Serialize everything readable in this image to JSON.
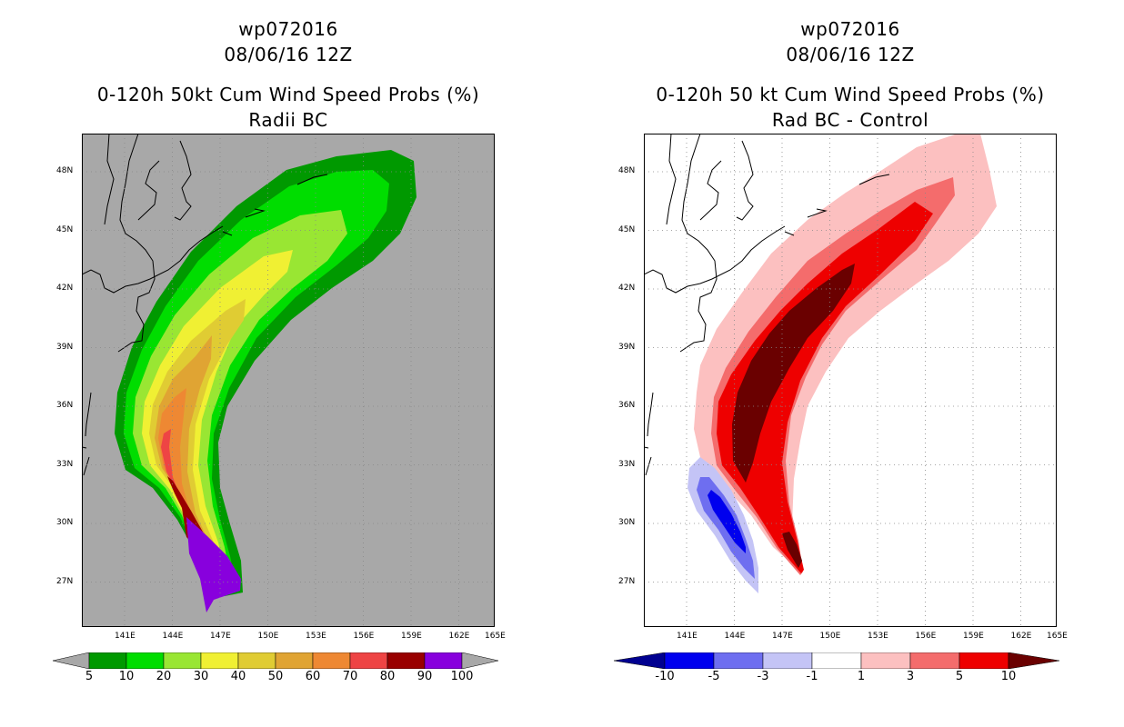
{
  "left": {
    "title_line1": "wp072016",
    "title_line2": "08/06/16 12Z",
    "title_line3": "0-120h 50kt Cum Wind Speed Probs (%)",
    "title_line4": "Radii BC",
    "background": "#a8a8a8",
    "colorbar": {
      "colors": [
        "#009900",
        "#00dd00",
        "#99e633",
        "#f0f033",
        "#e0cc33",
        "#e0a433",
        "#ee8833",
        "#ee4444",
        "#990000",
        "#8800dd"
      ],
      "under_color": "#a8a8a8",
      "over_color": "#a8a8a8",
      "labels": [
        "5",
        "10",
        "20",
        "30",
        "40",
        "50",
        "60",
        "70",
        "80",
        "90",
        "100"
      ]
    }
  },
  "right": {
    "title_line1": "wp072016",
    "title_line2": "08/06/16 12Z",
    "title_line3": "0-120h 50 kt Cum Wind Speed Probs (%)",
    "title_line4": "Rad BC - Control",
    "background": "#ffffff",
    "colorbar": {
      "colors": [
        "#0000ee",
        "#6e6ef0",
        "#c4c4f6",
        "#ffffff",
        "#fcc0c0",
        "#f46c6c",
        "#ee0000"
      ],
      "under_color": "#000090",
      "over_color": "#6a0000",
      "labels": [
        "-10",
        "-5",
        "-3",
        "-1",
        "1",
        "3",
        "5",
        "10"
      ]
    }
  },
  "axes": {
    "lon_ticks": [
      "141E",
      "144E",
      "147E",
      "150E",
      "153E",
      "156E",
      "159E",
      "162E",
      "165E"
    ],
    "lat_ticks": [
      "48N",
      "45N",
      "42N",
      "39N",
      "36N",
      "33N",
      "30N",
      "27N"
    ]
  }
}
